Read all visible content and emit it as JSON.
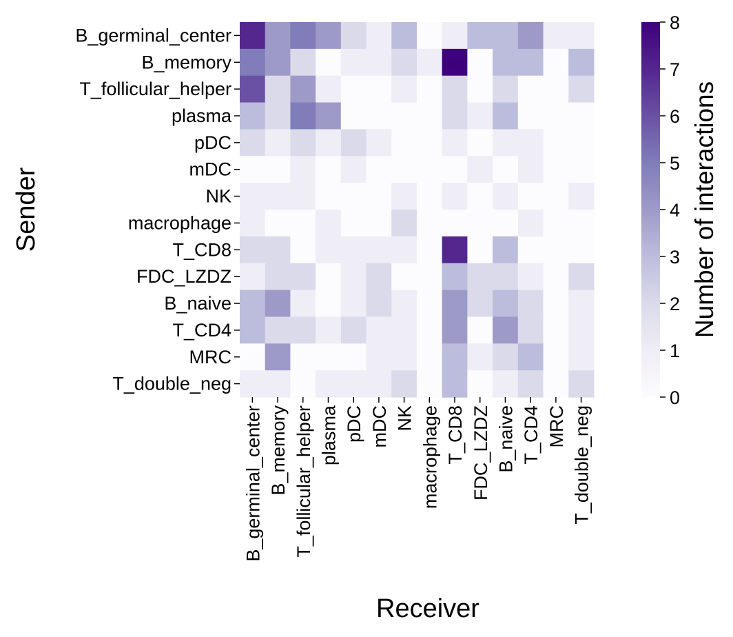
{
  "chart_data": {
    "type": "heatmap",
    "xlabel": "Receiver",
    "ylabel": "Sender",
    "colorbar": {
      "label": "Number of interactions",
      "range": [
        0,
        8
      ],
      "ticks": [
        "0",
        "1",
        "2",
        "3",
        "4",
        "5",
        "6",
        "7",
        "8"
      ],
      "colors": [
        "#fcfbfd",
        "#efedf5",
        "#dadaeb",
        "#bcbddc",
        "#9e9ac8",
        "#807dba",
        "#6a51a3",
        "#54278f",
        "#3f007d"
      ]
    },
    "rows": [
      "B_germinal_center",
      "B_memory",
      "T_follicular_helper",
      "plasma",
      "pDC",
      "mDC",
      "NK",
      "macrophage",
      "T_CD8",
      "FDC_LZDZ",
      "B_naive",
      "T_CD4",
      "MRC",
      "T_double_neg"
    ],
    "columns": [
      "B_germinal_center",
      "B_memory",
      "T_follicular_helper",
      "plasma",
      "pDC",
      "mDC",
      "NK",
      "macrophage",
      "T_CD8",
      "FDC_LZDZ",
      "B_naive",
      "T_CD4",
      "MRC",
      "T_double_neg"
    ],
    "values": [
      [
        7,
        4,
        5,
        4,
        2,
        1,
        3,
        0,
        1,
        3,
        3,
        4,
        1,
        1
      ],
      [
        5,
        4,
        2,
        0,
        1,
        1,
        2,
        1,
        8,
        0,
        3,
        3,
        0,
        3
      ],
      [
        6,
        2,
        4,
        1,
        0,
        0,
        1,
        0,
        2,
        0,
        2,
        0,
        0,
        2
      ],
      [
        3,
        2,
        5,
        4,
        0,
        0,
        0,
        0,
        2,
        1,
        3,
        0,
        0,
        0
      ],
      [
        2,
        1,
        2,
        1,
        2,
        1,
        0,
        0,
        1,
        0,
        1,
        1,
        0,
        0
      ],
      [
        0,
        0,
        1,
        0,
        1,
        0,
        0,
        0,
        0,
        1,
        0,
        1,
        0,
        0
      ],
      [
        1,
        1,
        1,
        0,
        0,
        0,
        1,
        0,
        1,
        0,
        1,
        0,
        0,
        1
      ],
      [
        1,
        0,
        0,
        1,
        0,
        0,
        2,
        0,
        0,
        0,
        0,
        1,
        0,
        0
      ],
      [
        2,
        2,
        0,
        1,
        1,
        1,
        1,
        0,
        7,
        0,
        3,
        0,
        0,
        0
      ],
      [
        1,
        2,
        2,
        0,
        1,
        2,
        0,
        0,
        3,
        2,
        2,
        1,
        0,
        2
      ],
      [
        3,
        4,
        1,
        0,
        1,
        2,
        1,
        0,
        4,
        2,
        3,
        2,
        0,
        1
      ],
      [
        3,
        2,
        2,
        1,
        2,
        1,
        1,
        0,
        4,
        0,
        4,
        2,
        0,
        1
      ],
      [
        0,
        4,
        0,
        0,
        0,
        1,
        1,
        0,
        3,
        1,
        2,
        3,
        0,
        1
      ],
      [
        1,
        1,
        0,
        1,
        1,
        1,
        2,
        0,
        3,
        0,
        1,
        2,
        0,
        2
      ]
    ]
  }
}
